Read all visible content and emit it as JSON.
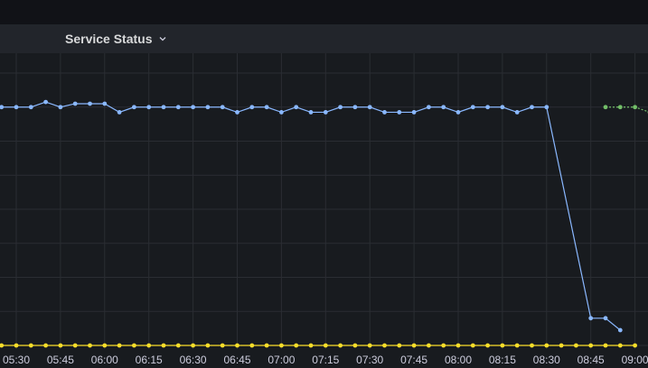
{
  "panel": {
    "title": "Service Status"
  },
  "colors": {
    "background": "#181b1f",
    "header": "#22252b",
    "grid": "#2a2d33",
    "series_blue": "#8ab8ff",
    "series_green": "#73bf69",
    "series_yellow": "#fade2a",
    "text": "#ccccdc"
  },
  "chart_data": {
    "type": "line",
    "title": "Service Status",
    "xlabel": "",
    "ylabel": "",
    "x_ticks": [
      "05:30",
      "05:45",
      "06:00",
      "06:15",
      "06:30",
      "06:45",
      "07:00",
      "07:15",
      "07:30",
      "07:45",
      "08:00",
      "08:15",
      "08:30",
      "08:45",
      "09:00"
    ],
    "ylim": [
      0,
      8
    ],
    "grid": true,
    "series": [
      {
        "color": "#8ab8ff",
        "x": [
          "05:25",
          "05:30",
          "05:35",
          "05:40",
          "05:45",
          "05:50",
          "05:55",
          "06:00",
          "06:05",
          "06:10",
          "06:15",
          "06:20",
          "06:25",
          "06:30",
          "06:35",
          "06:40",
          "06:45",
          "06:50",
          "06:55",
          "07:00",
          "07:05",
          "07:10",
          "07:15",
          "07:20",
          "07:25",
          "07:30",
          "07:35",
          "07:40",
          "07:45",
          "07:50",
          "07:55",
          "08:00",
          "08:05",
          "08:10",
          "08:15",
          "08:20",
          "08:25",
          "08:30",
          "08:35",
          "08:40",
          "08:45",
          "08:50",
          "08:55",
          "09:00"
        ],
        "values": [
          7.0,
          7.0,
          7.0,
          7.15,
          7.0,
          7.1,
          7.1,
          7.1,
          6.85,
          7.0,
          7.0,
          7.0,
          7.0,
          7.0,
          7.0,
          7.0,
          6.85,
          7.0,
          7.0,
          6.85,
          7.0,
          6.85,
          6.85,
          7.0,
          7.0,
          7.0,
          6.85,
          6.85,
          6.85,
          7.0,
          7.0,
          6.85,
          7.0,
          7.0,
          7.0,
          6.85,
          7.0,
          7.0,
          null,
          null,
          0.8,
          0.8,
          0.45,
          null
        ]
      },
      {
        "color": "#73bf69",
        "x": [
          "08:50",
          "08:55",
          "09:00",
          "09:05"
        ],
        "values": [
          7.0,
          7.0,
          7.0,
          6.85
        ]
      },
      {
        "color": "#fade2a",
        "x": [
          "05:25",
          "05:30",
          "05:35",
          "05:40",
          "05:45",
          "05:50",
          "05:55",
          "06:00",
          "06:05",
          "06:10",
          "06:15",
          "06:20",
          "06:25",
          "06:30",
          "06:35",
          "06:40",
          "06:45",
          "06:50",
          "06:55",
          "07:00",
          "07:05",
          "07:10",
          "07:15",
          "07:20",
          "07:25",
          "07:30",
          "07:35",
          "07:40",
          "07:45",
          "07:50",
          "07:55",
          "08:00",
          "08:05",
          "08:10",
          "08:15",
          "08:20",
          "08:25",
          "08:30",
          "08:35",
          "08:40",
          "08:45",
          "08:50",
          "08:55",
          "09:00"
        ],
        "values": [
          0,
          0,
          0,
          0,
          0,
          0,
          0,
          0,
          0,
          0,
          0,
          0,
          0,
          0,
          0,
          0,
          0,
          0,
          0,
          0,
          0,
          0,
          0,
          0,
          0,
          0,
          0,
          0,
          0,
          0,
          0,
          0,
          0,
          0,
          0,
          0,
          0,
          0,
          0,
          0,
          0,
          0,
          0,
          0
        ]
      }
    ]
  }
}
